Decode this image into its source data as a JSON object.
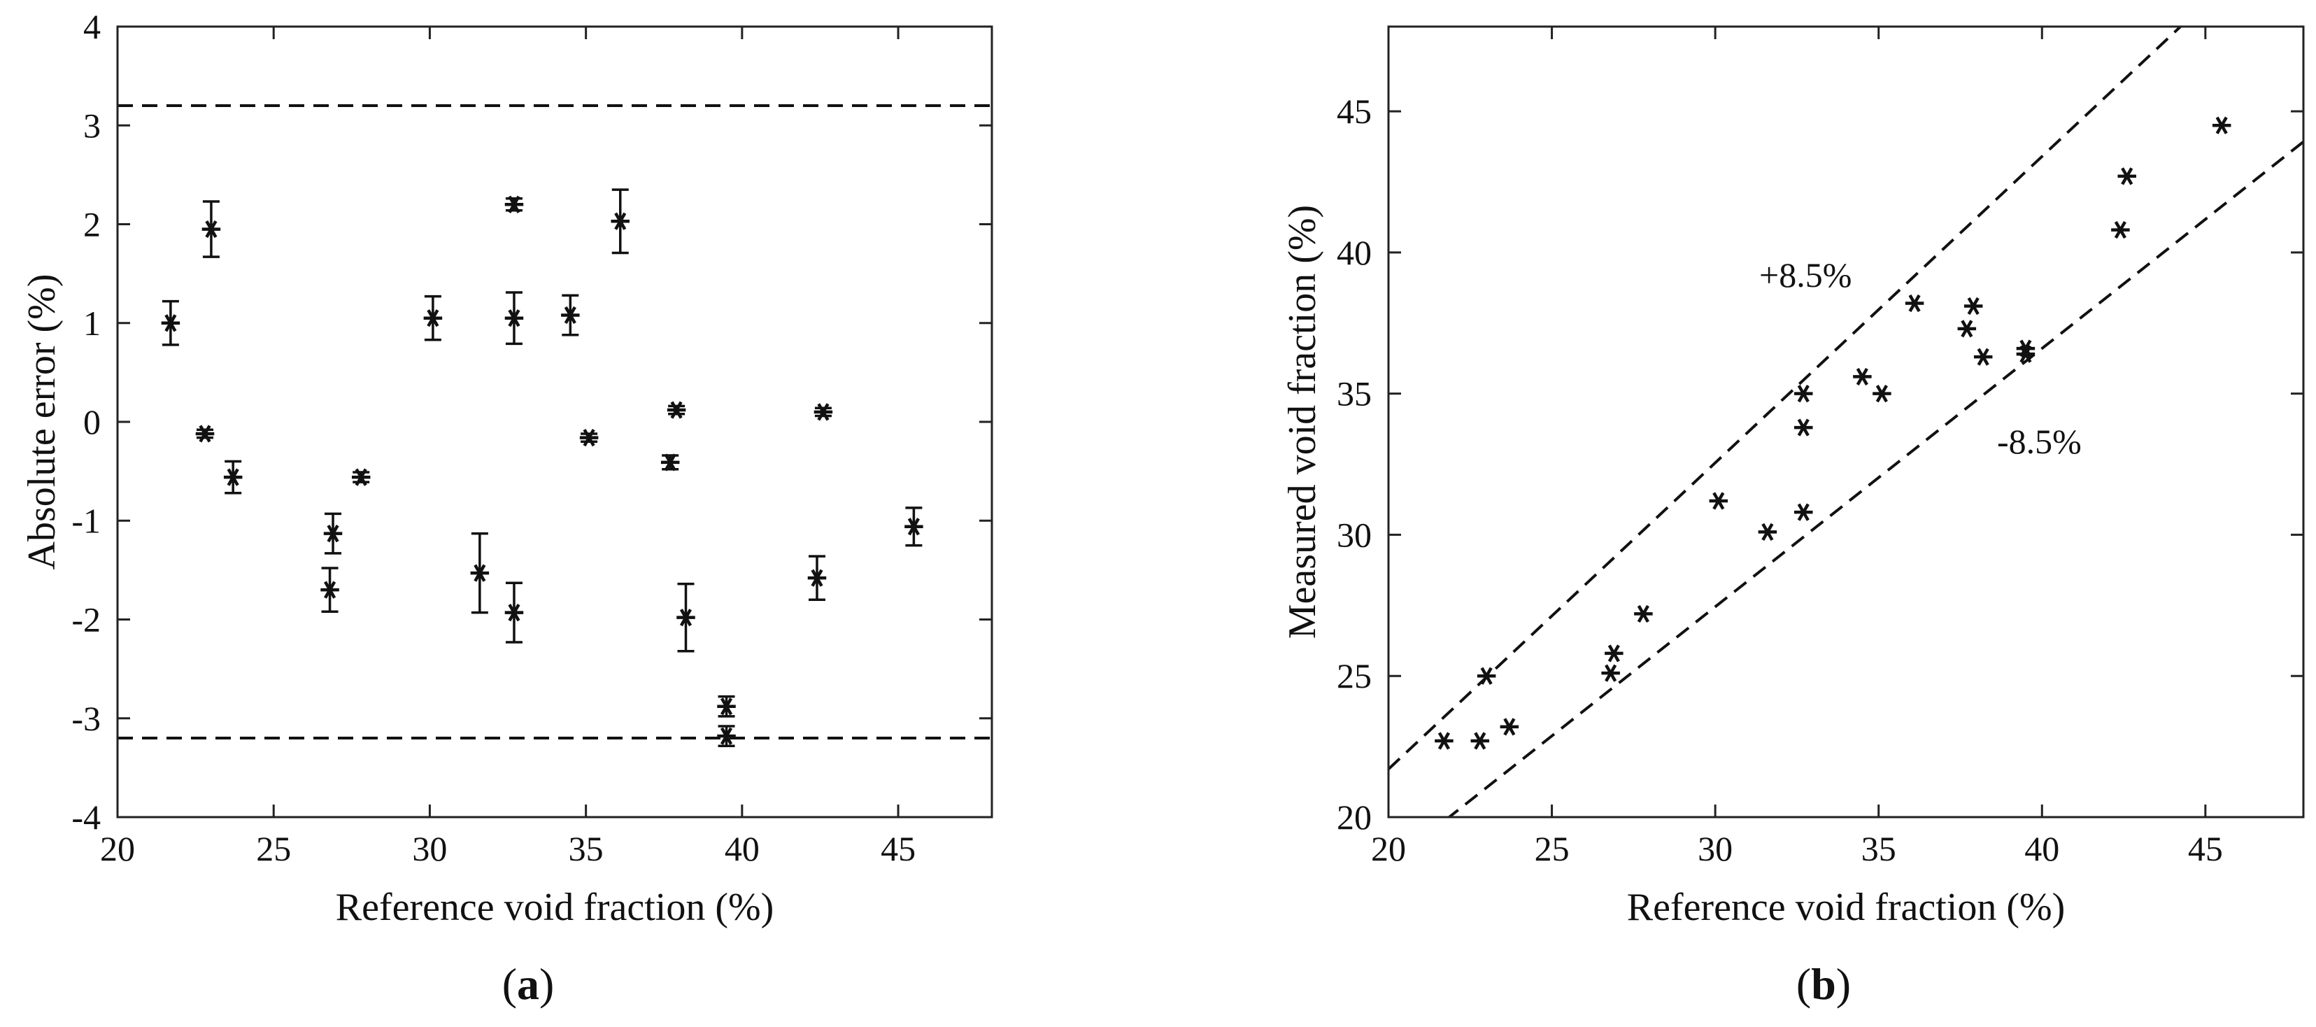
{
  "chart_data": [
    {
      "id": "a",
      "type": "scatter",
      "panel_label": "(a)",
      "panel_letter": "a",
      "xlabel": "Reference void fraction (%)",
      "ylabel": "Absolute error  (%)",
      "xlim": [
        20,
        48
      ],
      "ylim": [
        -4,
        4
      ],
      "xticks": [
        20,
        25,
        30,
        35,
        40,
        45
      ],
      "yticks": [
        -4,
        -3,
        -2,
        -1,
        0,
        1,
        2,
        3,
        4
      ],
      "reference_lines": [
        3.2,
        -3.2
      ],
      "marker": "asterisk",
      "points": [
        {
          "x": 21.7,
          "y": 1.0,
          "err": 0.22
        },
        {
          "x": 22.8,
          "y": -0.12,
          "err": 0.04
        },
        {
          "x": 23.0,
          "y": 1.95,
          "err": 0.28
        },
        {
          "x": 23.7,
          "y": -0.56,
          "err": 0.16
        },
        {
          "x": 26.8,
          "y": -1.7,
          "err": 0.22
        },
        {
          "x": 26.9,
          "y": -1.13,
          "err": 0.2
        },
        {
          "x": 27.8,
          "y": -0.56,
          "err": 0.05
        },
        {
          "x": 30.1,
          "y": 1.05,
          "err": 0.22
        },
        {
          "x": 31.6,
          "y": -1.53,
          "err": 0.4
        },
        {
          "x": 32.7,
          "y": 2.2,
          "err": 0.06
        },
        {
          "x": 32.7,
          "y": 1.05,
          "err": 0.26
        },
        {
          "x": 32.7,
          "y": -1.93,
          "err": 0.3
        },
        {
          "x": 34.5,
          "y": 1.08,
          "err": 0.2
        },
        {
          "x": 35.1,
          "y": -0.16,
          "err": 0.04
        },
        {
          "x": 36.1,
          "y": 2.03,
          "err": 0.32
        },
        {
          "x": 37.7,
          "y": -0.41,
          "err": 0.07
        },
        {
          "x": 37.9,
          "y": 0.12,
          "err": 0.04
        },
        {
          "x": 38.2,
          "y": -1.98,
          "err": 0.34
        },
        {
          "x": 39.5,
          "y": -2.88,
          "err": 0.1
        },
        {
          "x": 39.5,
          "y": -3.18,
          "err": 0.1
        },
        {
          "x": 42.4,
          "y": -1.58,
          "err": 0.22
        },
        {
          "x": 42.6,
          "y": 0.1,
          "err": 0.04
        },
        {
          "x": 45.5,
          "y": -1.06,
          "err": 0.19
        }
      ]
    },
    {
      "id": "b",
      "type": "scatter",
      "panel_label": "(b)",
      "panel_letter": "b",
      "xlabel": "Reference void fraction (%)",
      "ylabel": "Measured void fraction (%)",
      "xlim": [
        20,
        48
      ],
      "ylim": [
        20,
        48
      ],
      "xticks": [
        20,
        25,
        30,
        35,
        40,
        45
      ],
      "yticks": [
        20,
        25,
        30,
        35,
        40,
        45
      ],
      "reference_lines": [
        {
          "label": "+8.5%",
          "factor": 1.085
        },
        {
          "label": "-8.5%",
          "factor": 0.915
        }
      ],
      "marker": "asterisk",
      "points": [
        {
          "x": 21.7,
          "y": 22.7
        },
        {
          "x": 22.8,
          "y": 22.7
        },
        {
          "x": 23.0,
          "y": 25.0
        },
        {
          "x": 23.7,
          "y": 23.2
        },
        {
          "x": 26.8,
          "y": 25.1
        },
        {
          "x": 26.9,
          "y": 25.8
        },
        {
          "x": 27.8,
          "y": 27.2
        },
        {
          "x": 30.1,
          "y": 31.2
        },
        {
          "x": 31.6,
          "y": 30.1
        },
        {
          "x": 32.7,
          "y": 35.0
        },
        {
          "x": 32.7,
          "y": 33.8
        },
        {
          "x": 32.7,
          "y": 30.8
        },
        {
          "x": 34.5,
          "y": 35.6
        },
        {
          "x": 35.1,
          "y": 35.0
        },
        {
          "x": 36.1,
          "y": 38.2
        },
        {
          "x": 37.7,
          "y": 37.3
        },
        {
          "x": 37.9,
          "y": 38.1
        },
        {
          "x": 38.2,
          "y": 36.3
        },
        {
          "x": 39.5,
          "y": 36.4
        },
        {
          "x": 39.5,
          "y": 36.6
        },
        {
          "x": 42.4,
          "y": 40.8
        },
        {
          "x": 42.6,
          "y": 42.7
        },
        {
          "x": 45.5,
          "y": 44.5
        }
      ]
    }
  ]
}
